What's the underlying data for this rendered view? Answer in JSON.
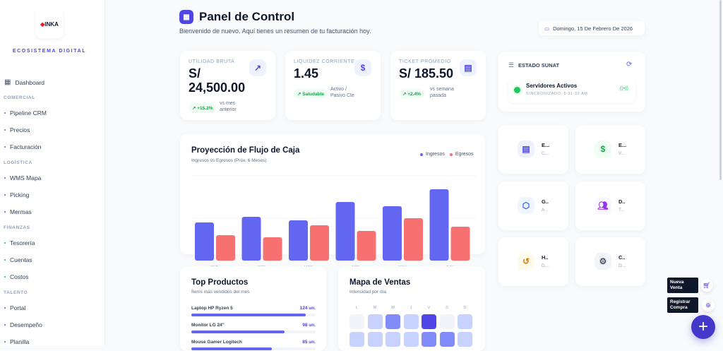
{
  "sidebar": {
    "logo_text": "INKA",
    "brand_subtitle": "ECOSISTEMA DIGITAL",
    "dashboard": "Dashboard",
    "sections": [
      {
        "title": "COMERCIAL",
        "items": [
          "Pipeline CRM",
          "Precios",
          "Facturación"
        ]
      },
      {
        "title": "LOGÍSTICA",
        "items": [
          "WMS Mapa",
          "Picking",
          "Mermas"
        ]
      },
      {
        "title": "FINANZAS",
        "items": [
          "Tesorería",
          "Cuentas",
          "Costos"
        ]
      },
      {
        "title": "TALENTO",
        "items": [
          "Portal",
          "Desempeño",
          "Planilla"
        ]
      }
    ]
  },
  "header": {
    "title": "Panel de Control",
    "subtitle": "Bienvenido de nuevo. Aquí tienes un resumen de tu facturación hoy.",
    "date": "Domingo, 15 De Febrero De 2026"
  },
  "kpis": [
    {
      "label": "UTILIDAD BRUTA",
      "value": "S/ 24,500.00",
      "badge": "↗ +15.2%",
      "caption": "vs mes anterior",
      "icon": "trending-up-icon"
    },
    {
      "label": "LIQUIDEZ CORRIENTE",
      "value": "1.45",
      "badge": "↗ Saludable",
      "caption": "Activo / Pasivo Cte",
      "icon": "dollar-icon"
    },
    {
      "label": "TICKET PROMEDIO",
      "value": "S/ 185.50",
      "badge": "↗ +2.4%",
      "caption": "vs semana pasada",
      "icon": "document-icon"
    }
  ],
  "sunat": {
    "title": "ESTADO SUNAT",
    "status": "Servidores Activos",
    "sync": "SINCRONIZADO: 5:31:33 AM"
  },
  "tiles": [
    {
      "title": "E...",
      "sub": "C...",
      "icon": "document-icon",
      "color": "#4f46e5",
      "bg": "#eef2ff"
    },
    {
      "title": "E...",
      "sub": "V...",
      "icon": "cash-icon",
      "color": "#16a34a",
      "bg": "#f0fdf4"
    },
    {
      "title": "G..",
      "sub": "A...",
      "icon": "box-icon",
      "color": "#2563eb",
      "bg": "#eff6ff"
    },
    {
      "title": "D..",
      "sub": "T...",
      "icon": "users-icon",
      "color": "#9333ea",
      "bg": "#faf5ff"
    },
    {
      "title": "H..",
      "sub": "D...",
      "icon": "history-icon",
      "color": "#d97706",
      "bg": "#fffbeb"
    },
    {
      "title": "C..",
      "sub": "D...",
      "icon": "gear-icon",
      "color": "#475569",
      "bg": "#f1f5f9"
    }
  ],
  "chart_data": {
    "type": "bar",
    "title": "Proyección de Flujo de Caja",
    "subtitle": "Ingresos vs Egresos (Próx. 6 Meses)",
    "categories": [
      "ENE",
      "FEB",
      "MAR",
      "ABR",
      "MAY",
      "JUN"
    ],
    "series": [
      {
        "name": "Ingresos",
        "color": "#6366f1",
        "values": [
          54,
          62,
          57,
          83,
          77,
          101
        ]
      },
      {
        "name": "Egresos",
        "color": "#f87171",
        "values": [
          36,
          33,
          50,
          42,
          60,
          48
        ]
      }
    ],
    "ylim": [
      0,
      120
    ],
    "grid": true,
    "legend": "top-right"
  },
  "top_products": {
    "title": "Top Productos",
    "subtitle": "Ítems más vendidos del mes",
    "items": [
      {
        "name": "Laptop HP Ryzen 5",
        "qty": "124 un.",
        "pct": 92
      },
      {
        "name": "Monitor LG 24\"",
        "qty": "98 un.",
        "pct": 75
      },
      {
        "name": "Mouse Gamer Logitech",
        "qty": "85 un.",
        "pct": 65
      }
    ]
  },
  "heatmap": {
    "title": "Mapa de Ventas",
    "subtitle": "Intensidad por día",
    "days": [
      "L",
      "M",
      "M",
      "J",
      "V",
      "S",
      "D"
    ],
    "rows": [
      [
        0,
        1,
        2,
        1,
        3,
        0,
        1
      ],
      [
        1,
        1,
        1,
        1,
        2,
        2,
        1
      ]
    ]
  },
  "fab": {
    "new_sale": "Nueva Venta",
    "register_purchase": "Registrar Compra"
  }
}
